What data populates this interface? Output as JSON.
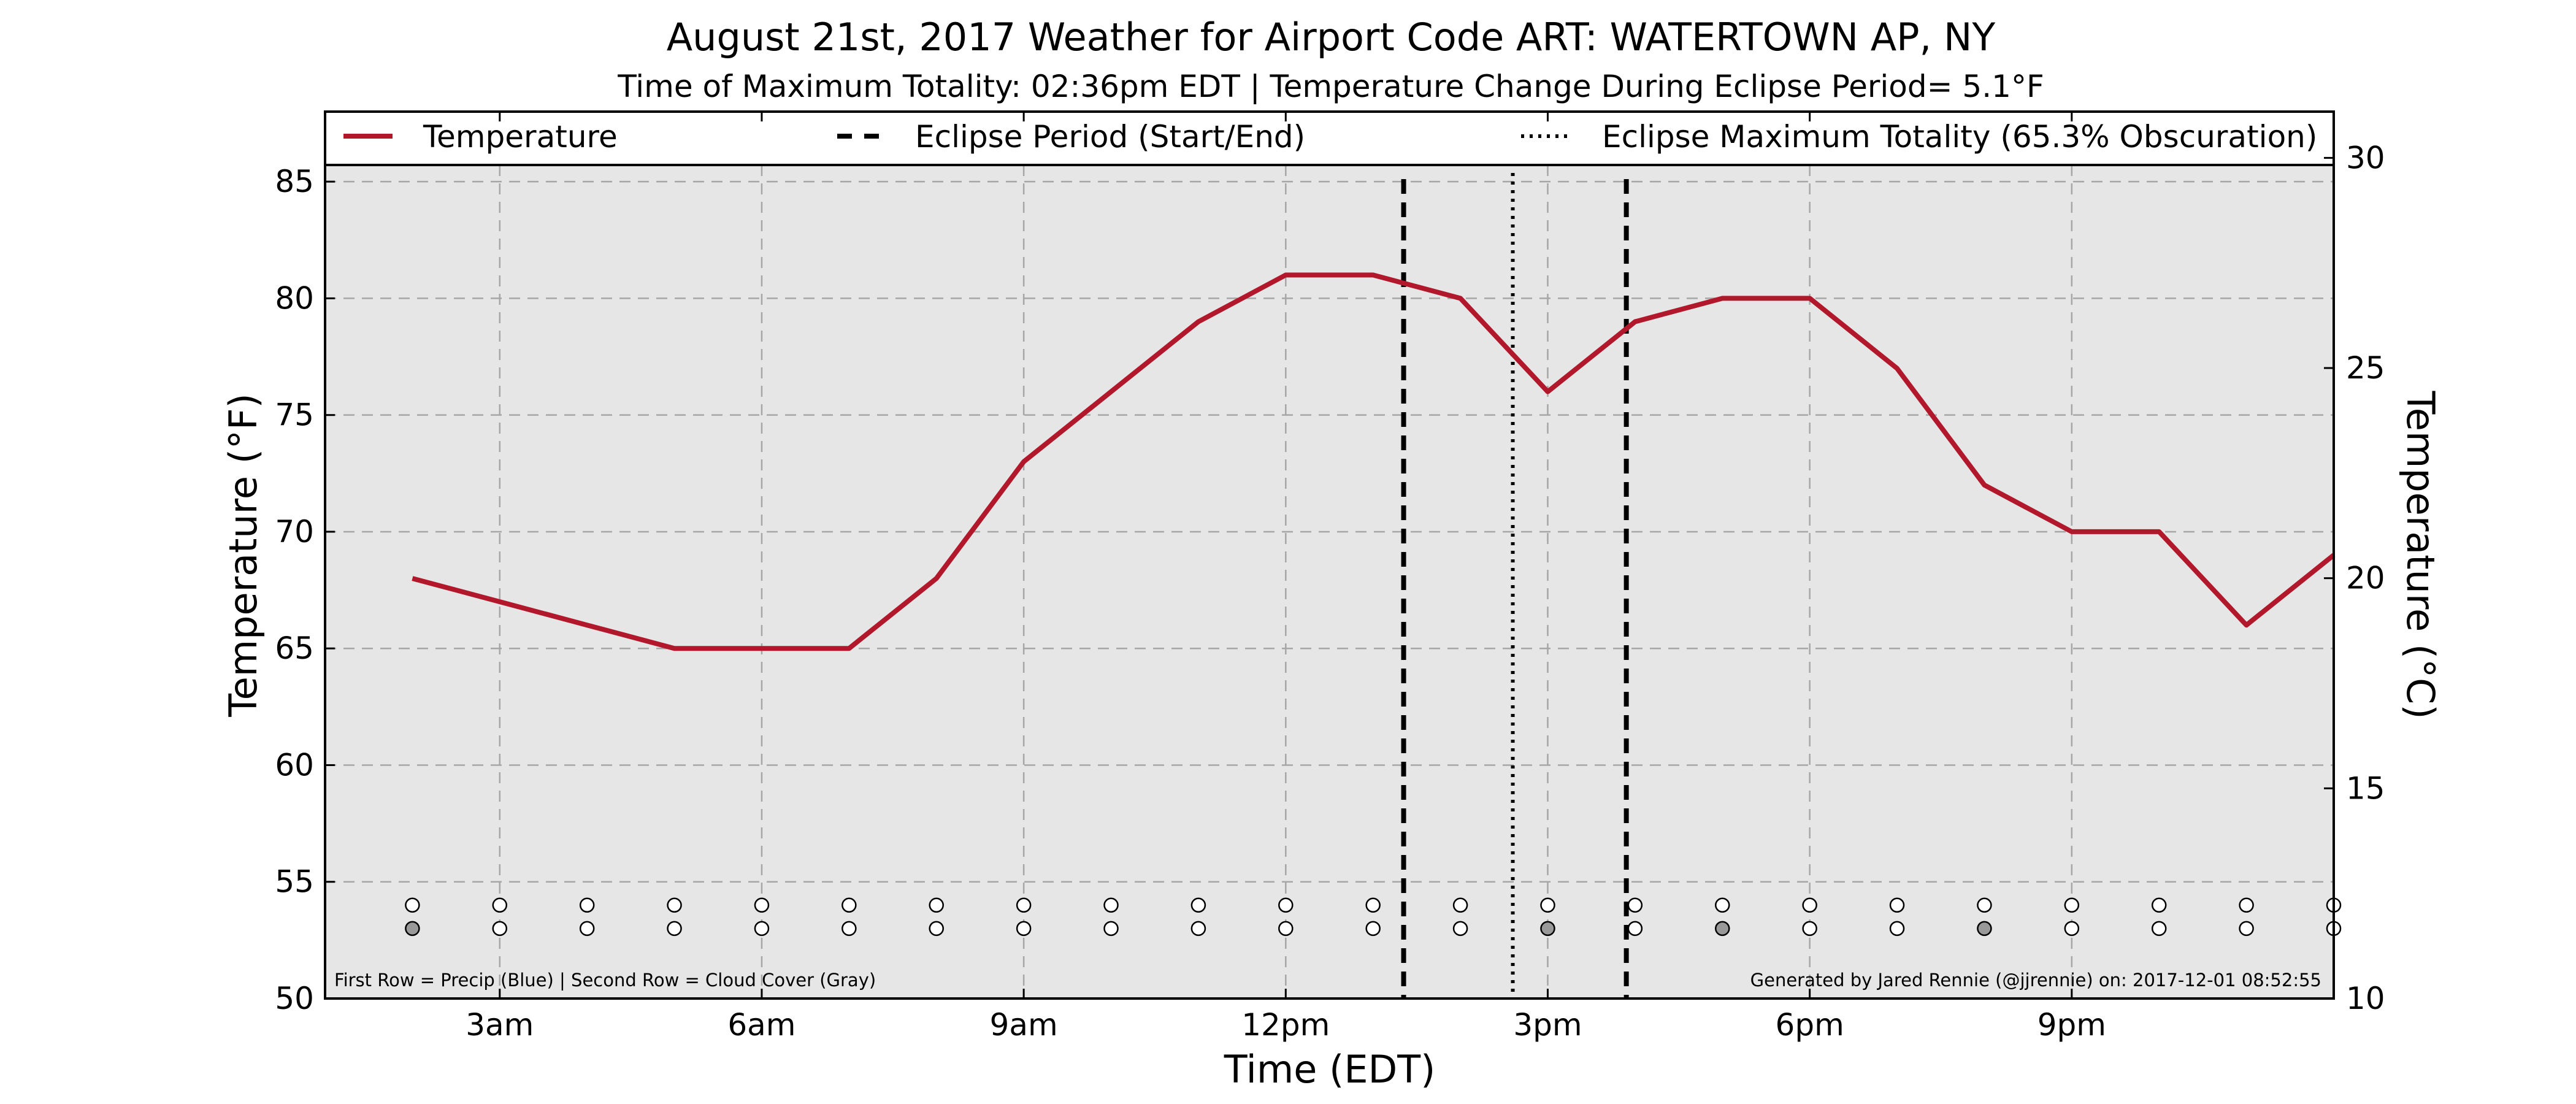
{
  "chart_data": {
    "type": "line",
    "title": "August 21st, 2017 Weather for Airport Code ART: WATERTOWN AP, NY",
    "subtitle": "Time of Maximum Totality: 02:36pm EDT | Temperature Change During Eclipse Period= 5.1°F",
    "xlabel": "Time (EDT)",
    "ylabel": "Temperature (°F)",
    "ylabel_right": "Temperature (°C)",
    "xlim": [
      1.0,
      24.0
    ],
    "ylim": [
      50,
      88
    ],
    "ylim_right": [
      10,
      31.1
    ],
    "grid": true,
    "legend_position": "top",
    "x_ticks": [
      {
        "value": 3,
        "label": "3am"
      },
      {
        "value": 6,
        "label": "6am"
      },
      {
        "value": 9,
        "label": "9am"
      },
      {
        "value": 12,
        "label": "12pm"
      },
      {
        "value": 15,
        "label": "3pm"
      },
      {
        "value": 18,
        "label": "6pm"
      },
      {
        "value": 21,
        "label": "9pm"
      }
    ],
    "y_ticks": [
      50,
      55,
      60,
      65,
      70,
      75,
      80,
      85
    ],
    "y_ticks_right": [
      10,
      15,
      20,
      25,
      30
    ],
    "series": [
      {
        "name": "Temperature",
        "color": "#b2182b",
        "x": [
          2,
          3,
          4,
          5,
          6,
          7,
          8,
          9,
          10,
          11,
          12,
          13,
          14,
          15,
          16,
          17,
          18,
          19,
          20,
          21,
          22,
          23,
          24
        ],
        "values": [
          68,
          67,
          66,
          65,
          65,
          65,
          68,
          73,
          76,
          79,
          81,
          81,
          80,
          76,
          79,
          80,
          80,
          77,
          72,
          70,
          70,
          66,
          69
        ]
      }
    ],
    "eclipse_start": 13.35,
    "eclipse_end": 15.9,
    "eclipse_max": 14.6,
    "legend": [
      {
        "label": "Temperature",
        "style": "solid"
      },
      {
        "label": "Eclipse Period (Start/End)",
        "style": "dashed"
      },
      {
        "label": "Eclipse Maximum Totality (65.3% Obscuration)",
        "style": "dotted"
      }
    ],
    "marker_rows": [
      {
        "y": 54.0,
        "fill": [
          "#ffffff",
          "#ffffff",
          "#ffffff",
          "#ffffff",
          "#ffffff",
          "#ffffff",
          "#ffffff",
          "#ffffff",
          "#ffffff",
          "#ffffff",
          "#ffffff",
          "#ffffff",
          "#ffffff",
          "#ffffff",
          "#ffffff",
          "#ffffff",
          "#ffffff",
          "#ffffff",
          "#ffffff",
          "#ffffff",
          "#ffffff",
          "#ffffff",
          "#ffffff"
        ]
      },
      {
        "y": 53.0,
        "fill": [
          "#999999",
          "#ffffff",
          "#ffffff",
          "#ffffff",
          "#ffffff",
          "#ffffff",
          "#ffffff",
          "#ffffff",
          "#ffffff",
          "#ffffff",
          "#ffffff",
          "#ffffff",
          "#ffffff",
          "#999999",
          "#ffffff",
          "#999999",
          "#ffffff",
          "#ffffff",
          "#999999",
          "#ffffff",
          "#ffffff",
          "#ffffff",
          "#ffffff"
        ]
      }
    ],
    "footnote_left": "First Row = Precip (Blue) | Second Row = Cloud Cover (Gray)",
    "footnote_right": "Generated by Jared Rennie (@jjrennie) on: 2017-12-01 08:52:55",
    "plot_background": "#e6e6e6"
  }
}
